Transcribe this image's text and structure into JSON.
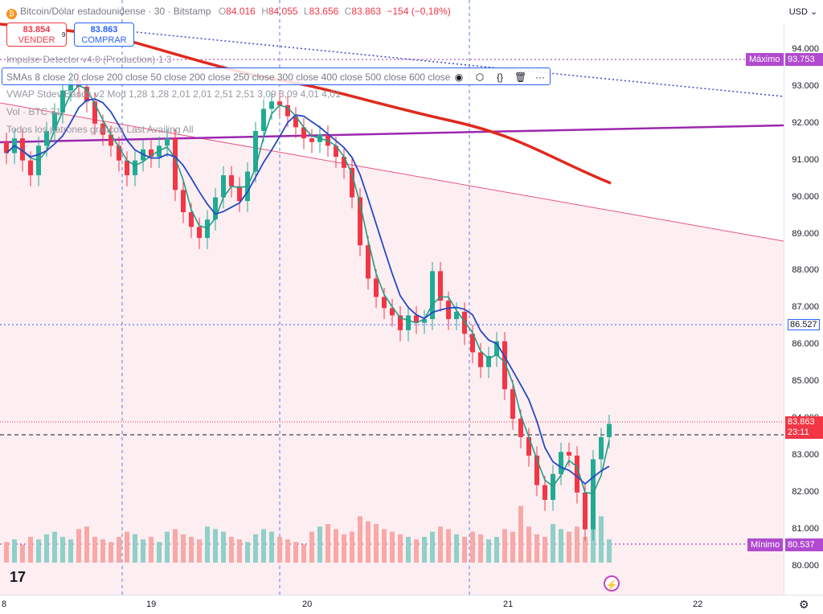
{
  "header": {
    "symbol_title": "Bitcoin/Dólar estadounidense · 30 · Bitstamp",
    "ohlc": {
      "o_label": "O",
      "o": "84.016",
      "h_label": "H",
      "h": "84.055",
      "l_label": "L",
      "l": "83.656",
      "c_label": "C",
      "c": "83.863",
      "change": "−154 (−0,18%)"
    }
  },
  "trade": {
    "sell_price": "83.854",
    "sell_label": "VENDER",
    "buy_price": "83.863",
    "buy_label": "COMPRAR",
    "spread": "9"
  },
  "indicators": {
    "impulse": "Impulse Detector v4.0 (Production) 1 3",
    "smas": "SMAs 8 close 20 close 200 close 50 close 200 close 250 close 300 close 400 close 500 close 600 close",
    "vwap": "VWAP Stdev Bands v2 Mod 1,28 1,28 2,01 2,01 2,51 2,51 3,09 3,09 4,01 4,01",
    "vol": "Vol · BTC  31",
    "patterns": "Todos los patrones gráficos Last Availing All"
  },
  "price_scale": {
    "currency": "USD",
    "ticks": [
      "94.000",
      "93.000",
      "92.000",
      "91.000",
      "90.000",
      "89.000",
      "88.000",
      "87.000",
      "86.000",
      "85.000",
      "84.000",
      "83.000",
      "82.000",
      "81.000",
      "80.000"
    ],
    "max_label": "Máximo",
    "max_value": "93.753",
    "min_label": "Mínimo",
    "min_value": "80.537",
    "level_value": "86.527",
    "last_price": "83.863",
    "countdown": "23:11"
  },
  "time_axis": {
    "labels": [
      "8",
      "19",
      "20",
      "21",
      "22"
    ]
  },
  "colors": {
    "up": "#22ab94",
    "down": "#f23645",
    "sma_red": "#e0291d",
    "purple": "#9c27b0",
    "blue": "#2548c4",
    "green_ma": "#1f9e85",
    "pink": "#e8557f",
    "vol_up": "#8fd0c7",
    "vol_down": "#f7a9a7"
  },
  "icons": {
    "eye": "eye-icon",
    "settings": "settings-icon",
    "braces": "braces-icon",
    "trash": "trash-icon",
    "more": "more-icon"
  }
}
